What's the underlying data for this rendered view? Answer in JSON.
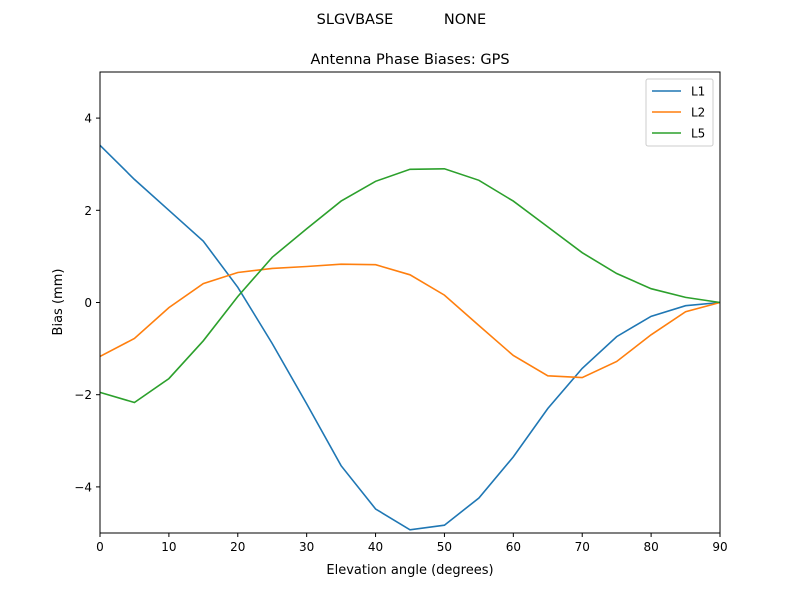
{
  "chart_data": {
    "type": "line",
    "suptitle_left": "SLGVBASE",
    "suptitle_right": "NONE",
    "title": "Antenna Phase Biases: GPS",
    "xlabel": "Elevation angle (degrees)",
    "ylabel": "Bias (mm)",
    "xlim": [
      0,
      90
    ],
    "ylim": [
      -5,
      5
    ],
    "xticks": [
      0,
      10,
      20,
      30,
      40,
      50,
      60,
      70,
      80,
      90
    ],
    "yticks": [
      -4,
      -2,
      0,
      2,
      4
    ],
    "ytick_labels": [
      "−4",
      "−2",
      "0",
      "2",
      "4"
    ],
    "grid": false,
    "legend_position": "top-right",
    "x": [
      0,
      5,
      10,
      15,
      20,
      25,
      30,
      35,
      40,
      45,
      50,
      55,
      60,
      65,
      70,
      75,
      80,
      85,
      90
    ],
    "series": [
      {
        "name": "L1",
        "color": "#1f77b4",
        "values": [
          3.41,
          2.67,
          2.0,
          1.33,
          0.33,
          -0.89,
          -2.2,
          -3.54,
          -4.48,
          -4.93,
          -4.83,
          -4.24,
          -3.35,
          -2.3,
          -1.43,
          -0.74,
          -0.3,
          -0.07,
          0.0
        ]
      },
      {
        "name": "L2",
        "color": "#ff7f0e",
        "values": [
          -1.17,
          -0.78,
          -0.11,
          0.41,
          0.65,
          0.74,
          0.78,
          0.83,
          0.82,
          0.6,
          0.16,
          -0.5,
          -1.15,
          -1.59,
          -1.63,
          -1.28,
          -0.7,
          -0.2,
          0.0
        ]
      },
      {
        "name": "L5",
        "color": "#2ca02c",
        "values": [
          -1.95,
          -2.17,
          -1.65,
          -0.83,
          0.13,
          0.98,
          1.6,
          2.2,
          2.63,
          2.89,
          2.9,
          2.65,
          2.2,
          1.64,
          1.08,
          0.63,
          0.3,
          0.11,
          0.0
        ]
      }
    ]
  }
}
